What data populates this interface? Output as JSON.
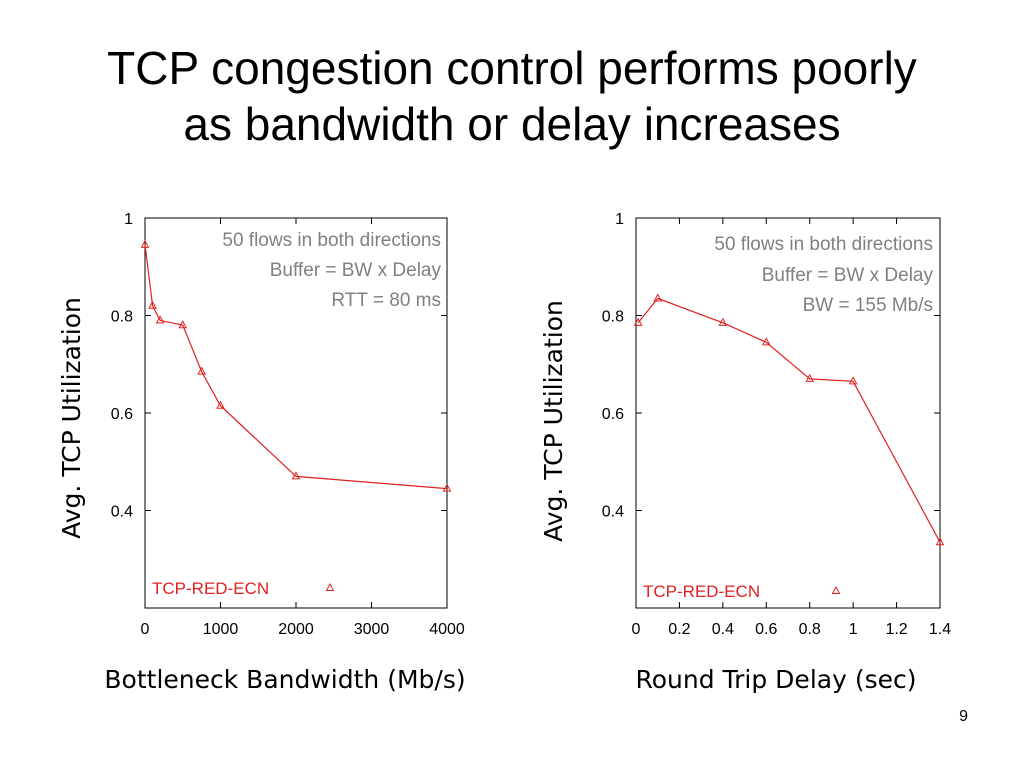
{
  "slide": {
    "title_line1": "TCP congestion control performs poorly",
    "title_line2": "as bandwidth or delay increases",
    "page_number": "9"
  },
  "colors": {
    "series": "#e02020",
    "annotation": "#808080",
    "axis": "#000000"
  },
  "chart_data": [
    {
      "type": "line",
      "xlabel": "Bottleneck Bandwidth (Mb/s)",
      "ylabel": "Avg. TCP Utilization",
      "xlim": [
        0,
        4000
      ],
      "ylim": [
        0.2,
        1.0
      ],
      "xticks": [
        "0",
        "1000",
        "2000",
        "3000",
        "4000"
      ],
      "xtick_values": [
        0,
        1000,
        2000,
        3000,
        4000
      ],
      "yticks": [
        "0.4",
        "0.6",
        "0.8",
        "1"
      ],
      "ytick_values": [
        0.4,
        0.6,
        0.8,
        1.0
      ],
      "annotations": [
        "50 flows in both directions",
        "Buffer = BW x Delay",
        "RTT = 80 ms"
      ],
      "legend_position": "bottom",
      "grid": false,
      "series": [
        {
          "name": "TCP-RED-ECN",
          "marker": "triangle",
          "x": [
            0,
            100,
            200,
            500,
            750,
            1000,
            2000,
            4000
          ],
          "y": [
            0.945,
            0.82,
            0.79,
            0.78,
            0.685,
            0.615,
            0.47,
            0.445
          ]
        }
      ]
    },
    {
      "type": "line",
      "xlabel": "Round Trip Delay (sec)",
      "ylabel": "Avg. TCP Utilization",
      "xlim": [
        0,
        1.4
      ],
      "ylim": [
        0.2,
        1.0
      ],
      "xticks": [
        "0",
        "0.2",
        "0.4",
        "0.6",
        "0.8",
        "1",
        "1.2",
        "1.4"
      ],
      "xtick_values": [
        0,
        0.2,
        0.4,
        0.6,
        0.8,
        1.0,
        1.2,
        1.4
      ],
      "yticks": [
        "0.4",
        "0.6",
        "0.8",
        "1"
      ],
      "ytick_values": [
        0.4,
        0.6,
        0.8,
        1.0
      ],
      "annotations": [
        "50 flows in both directions",
        "Buffer = BW x Delay",
        "BW = 155 Mb/s"
      ],
      "legend_position": "bottom",
      "grid": false,
      "series": [
        {
          "name": "TCP-RED-ECN",
          "marker": "triangle",
          "x": [
            0.01,
            0.1,
            0.4,
            0.6,
            0.8,
            1.0,
            1.4
          ],
          "y": [
            0.785,
            0.835,
            0.785,
            0.745,
            0.67,
            0.665,
            0.335
          ]
        }
      ]
    }
  ]
}
